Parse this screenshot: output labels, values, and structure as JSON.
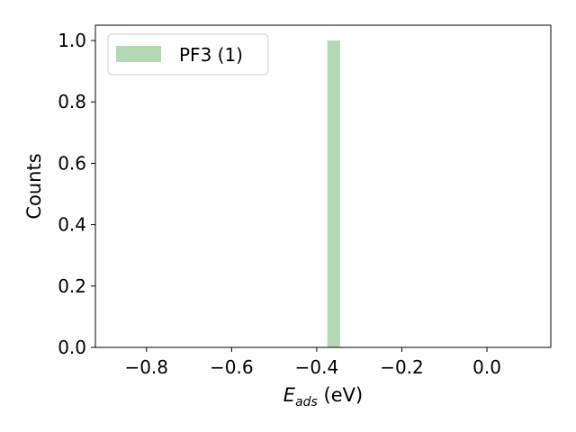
{
  "chart_data": {
    "type": "bar",
    "subtype": "histogram",
    "title": "",
    "xlabel": {
      "symbol": "E",
      "subscript": "ads",
      "unit": " (eV)"
    },
    "ylabel": "Counts",
    "xlim": [
      -0.92,
      0.15
    ],
    "ylim": [
      0,
      1.05
    ],
    "xticks": [
      -0.8,
      -0.6,
      -0.4,
      -0.2,
      0.0
    ],
    "xtick_labels": [
      "−0.8",
      "−0.6",
      "−0.4",
      "−0.2",
      "0.0"
    ],
    "yticks": [
      0.0,
      0.2,
      0.4,
      0.6,
      0.8,
      1.0
    ],
    "ytick_labels": [
      "0.0",
      "0.2",
      "0.4",
      "0.6",
      "0.8",
      "1.0"
    ],
    "grid": false,
    "legend_position": "top-left",
    "series": [
      {
        "name": "PF3 (1)",
        "color": "#b2d9b2",
        "bins": [
          {
            "x0": -0.375,
            "x1": -0.345,
            "count": 1
          }
        ]
      }
    ]
  }
}
